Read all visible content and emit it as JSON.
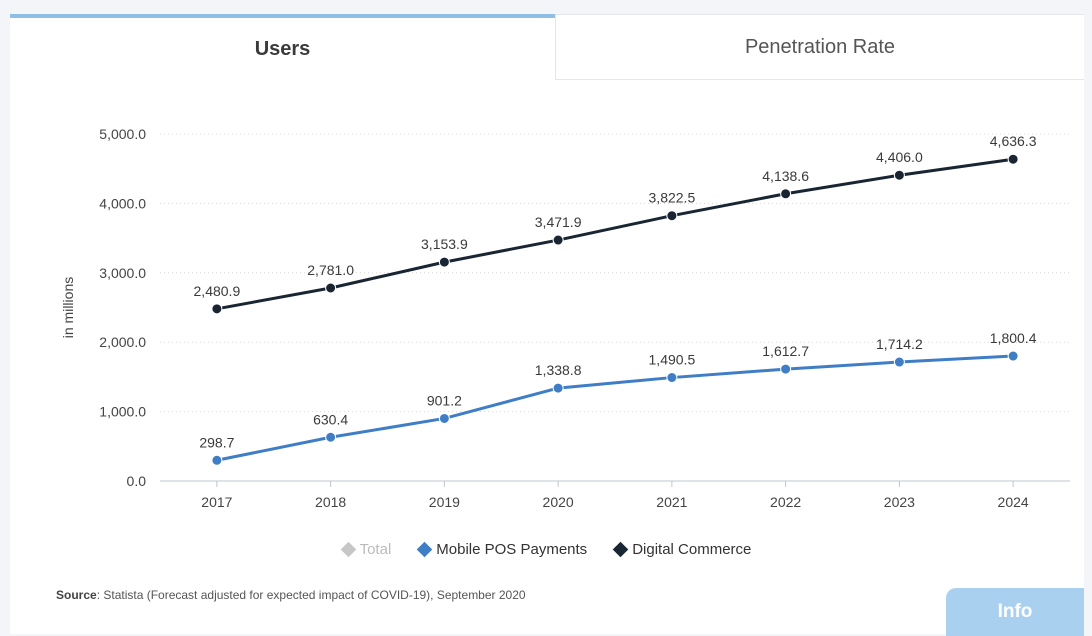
{
  "tabs": [
    {
      "label": "Users",
      "active": true
    },
    {
      "label": "Penetration Rate",
      "active": false
    }
  ],
  "legend": [
    {
      "label": "Total",
      "color": "#c7c7c7",
      "muted": true
    },
    {
      "label": "Mobile POS Payments",
      "color": "#3f7ec6",
      "muted": false
    },
    {
      "label": "Digital Commerce",
      "color": "#1a2533",
      "muted": false
    }
  ],
  "source": {
    "label": "Source",
    "text": ": Statista (Forecast adjusted for expected impact of COVID-19), September 2020"
  },
  "info_button": {
    "label": "Info"
  },
  "chart_data": {
    "type": "line",
    "title": "",
    "xlabel": "",
    "ylabel": "in millions",
    "x": [
      "2017",
      "2018",
      "2019",
      "2020",
      "2021",
      "2022",
      "2023",
      "2024"
    ],
    "ylim": [
      0,
      5000
    ],
    "yticks": [
      "0.0",
      "1,000.0",
      "2,000.0",
      "3,000.0",
      "4,000.0",
      "5,000.0"
    ],
    "grid": true,
    "series": [
      {
        "name": "Digital Commerce",
        "color": "#1a2533",
        "values": [
          2480.9,
          2781.0,
          3153.9,
          3471.9,
          3822.5,
          4138.6,
          4406.0,
          4636.3
        ],
        "labels": [
          "2,480.9",
          "2,781.0",
          "3,153.9",
          "3,471.9",
          "3,822.5",
          "4,138.6",
          "4,406.0",
          "4,636.3"
        ]
      },
      {
        "name": "Mobile POS Payments",
        "color": "#3f7ec6",
        "values": [
          298.7,
          630.4,
          901.2,
          1338.8,
          1490.5,
          1612.7,
          1714.2,
          1800.4
        ],
        "labels": [
          "298.7",
          "630.4",
          "901.2",
          "1,338.8",
          "1,490.5",
          "1,612.7",
          "1,714.2",
          "1,800.4"
        ]
      }
    ]
  }
}
